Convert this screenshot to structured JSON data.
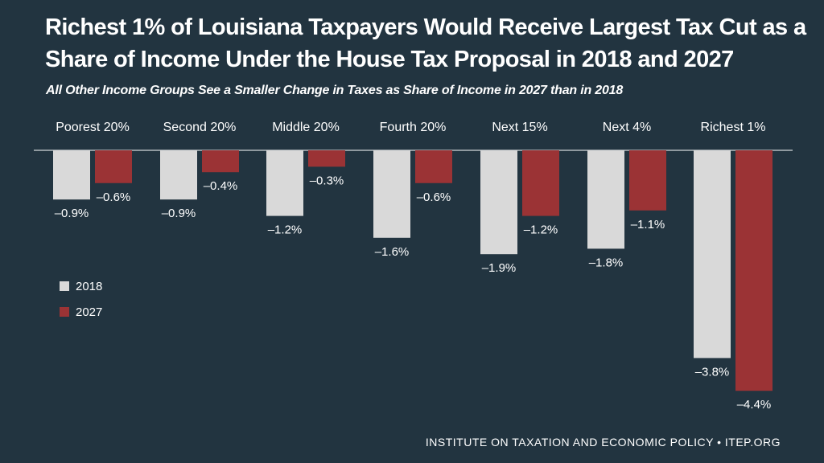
{
  "title": "Richest 1% of Louisiana Taxpayers Would Receive Largest Tax Cut as a Share of Income Under the House Tax Proposal in 2018 and 2027",
  "subtitle": "All Other Income Groups See a Smaller Change in Taxes as Share of Income in 2027 than in 2018",
  "footer": "INSTITUTE ON TAXATION AND ECONOMIC POLICY • ITEP.ORG",
  "colors": {
    "background": "#223440",
    "series_2018": "#d9d9d9",
    "series_2027": "#9b3335",
    "axis": "#ffffff"
  },
  "chart_data": {
    "type": "bar",
    "title": "Richest 1% of Louisiana Taxpayers Would Receive Largest Tax Cut as a Share of Income Under the House Tax Proposal in 2018 and 2027",
    "subtitle": "All Other Income Groups See a Smaller Change in Taxes as Share of Income in 2027 than in 2018",
    "xlabel": "",
    "ylabel": "",
    "ylim": [
      -4.4,
      0
    ],
    "categories": [
      "Poorest 20%",
      "Second 20%",
      "Middle 20%",
      "Fourth 20%",
      "Next 15%",
      "Next 4%",
      "Richest 1%"
    ],
    "series": [
      {
        "name": "2018",
        "values": [
          -0.9,
          -0.9,
          -1.2,
          -1.6,
          -1.9,
          -1.8,
          -3.8
        ],
        "labels": [
          "–0.9%",
          "–0.9%",
          "–1.2%",
          "–1.6%",
          "–1.9%",
          "–1.8%",
          "–3.8%"
        ]
      },
      {
        "name": "2027",
        "values": [
          -0.6,
          -0.4,
          -0.3,
          -0.6,
          -1.2,
          -1.1,
          -4.4
        ],
        "labels": [
          "–0.6%",
          "–0.4%",
          "–0.3%",
          "–0.6%",
          "–1.2%",
          "–1.1%",
          "–4.4%"
        ]
      }
    ],
    "legend": [
      "2018",
      "2027"
    ],
    "legend_position": "left"
  }
}
